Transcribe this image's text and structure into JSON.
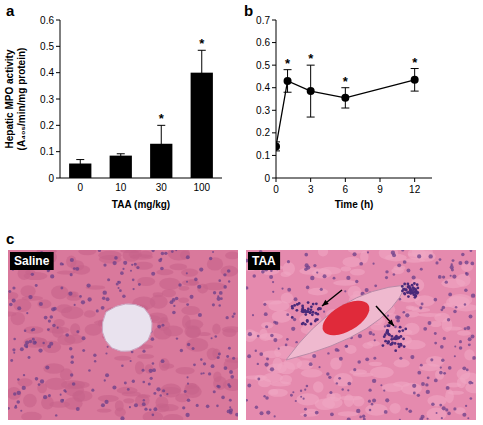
{
  "chart_data": [
    {
      "panel": "a",
      "type": "bar",
      "categories": [
        "0",
        "10",
        "30",
        "100"
      ],
      "values": [
        0.055,
        0.085,
        0.13,
        0.4
      ],
      "errors": [
        0.015,
        0.007,
        0.07,
        0.085
      ],
      "annotations": [
        null,
        null,
        "*",
        "*"
      ],
      "color": "#000000",
      "xlabel": "TAA (mg/kg)",
      "ylabel": [
        "Hepatic MPO activity",
        "(A₄₀₅/min/mg protein)"
      ],
      "ylim": [
        0,
        0.6
      ],
      "yticks": [
        0,
        0.1,
        0.2,
        0.3,
        0.4,
        0.5,
        0.6
      ]
    },
    {
      "panel": "b",
      "type": "line",
      "x": [
        0,
        1,
        3,
        6,
        12
      ],
      "values": [
        0.14,
        0.43,
        0.385,
        0.355,
        0.435
      ],
      "errors": [
        0.02,
        0.05,
        0.115,
        0.045,
        0.05
      ],
      "annotations": [
        null,
        "*",
        "*",
        "*",
        "*"
      ],
      "color": "#000000",
      "marker": "circle",
      "xlabel": "Time (h)",
      "xlim": [
        0,
        13.5
      ],
      "xticks": [
        0,
        3,
        6,
        9,
        12
      ],
      "ylim": [
        0,
        0.7
      ],
      "yticks": [
        0,
        0.1,
        0.2,
        0.3,
        0.4,
        0.5,
        0.6,
        0.7
      ]
    }
  ],
  "panel_c": {
    "panel": "c",
    "images": [
      {
        "label": "Saline"
      },
      {
        "label": "TAA"
      }
    ]
  }
}
